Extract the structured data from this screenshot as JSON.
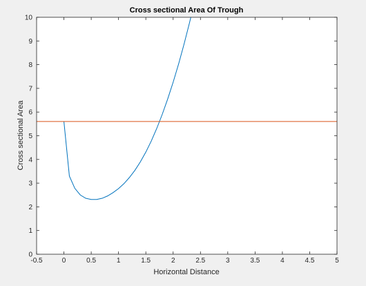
{
  "chart_data": {
    "type": "line",
    "title": "Cross sectional Area Of Trough",
    "xlabel": "Horizontal Distance",
    "ylabel": "Cross sectional Area",
    "xlim": [
      -0.5,
      5
    ],
    "ylim": [
      0,
      10
    ],
    "xticks": [
      "-0.5",
      "0",
      "0.5",
      "1",
      "1.5",
      "2",
      "2.5",
      "3",
      "3.5",
      "4",
      "4.5",
      "5"
    ],
    "yticks": [
      "0",
      "1",
      "2",
      "3",
      "4",
      "5",
      "6",
      "7",
      "8",
      "9",
      "10"
    ],
    "grid": false,
    "series": [
      {
        "color": "#0072bd",
        "x": [
          0,
          0.1,
          0.2,
          0.3,
          0.4,
          0.5,
          0.6,
          0.7,
          0.8,
          0.9,
          1.0,
          1.1,
          1.2,
          1.3,
          1.4,
          1.5,
          1.6,
          1.7,
          1.8,
          1.9,
          2.0,
          2.1,
          2.2,
          2.3,
          2.4
        ],
        "y": [
          5.6,
          3.3,
          2.78,
          2.5,
          2.36,
          2.31,
          2.31,
          2.36,
          2.46,
          2.6,
          2.77,
          2.98,
          3.24,
          3.54,
          3.9,
          4.31,
          4.78,
          5.31,
          5.9,
          6.55,
          7.26,
          8.03,
          8.87,
          9.77,
          10.74
        ]
      },
      {
        "color": "#d95319",
        "x": [
          -0.5,
          5
        ],
        "y": [
          5.6,
          5.6
        ]
      }
    ]
  }
}
